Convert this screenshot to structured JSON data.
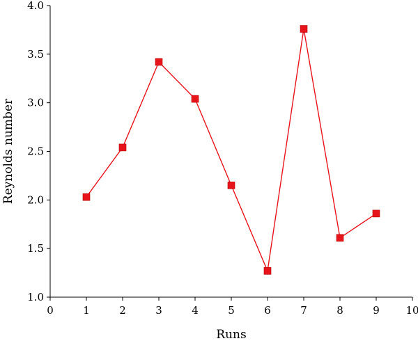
{
  "chart_data": {
    "type": "line",
    "title": "",
    "xlabel": "Runs",
    "ylabel": "Reynolds number",
    "xlim": [
      0,
      10
    ],
    "ylim": [
      1.0,
      4.0
    ],
    "x_ticks": [
      "0",
      "1",
      "2",
      "3",
      "4",
      "5",
      "6",
      "7",
      "8",
      "9",
      "10"
    ],
    "y_ticks": [
      "1.0",
      "1.5",
      "2.0",
      "2.5",
      "3.0",
      "3.5",
      "4.0"
    ],
    "grid": false,
    "legend": "none",
    "marker": "square",
    "color": "#e8141c",
    "series": [
      {
        "x": [
          1,
          2,
          3,
          4,
          5,
          6,
          7,
          8,
          9
        ],
        "y": [
          2.03,
          2.54,
          3.42,
          3.04,
          2.15,
          1.27,
          3.76,
          1.61,
          1.86
        ]
      }
    ]
  }
}
